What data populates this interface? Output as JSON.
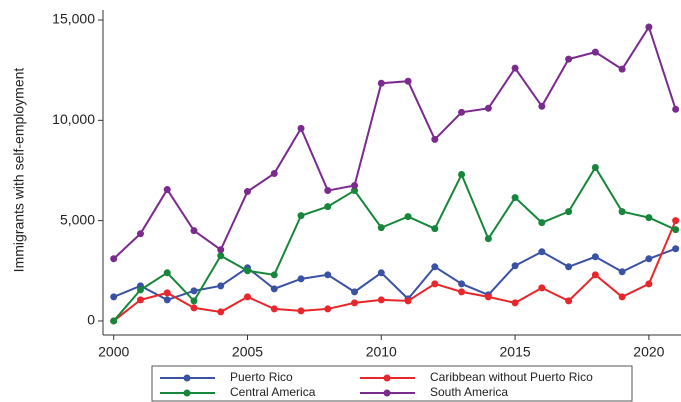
{
  "chart_data": {
    "type": "line",
    "y_label": "Immigrants with self-employment",
    "x": [
      2000,
      2001,
      2002,
      2003,
      2004,
      2005,
      2006,
      2007,
      2008,
      2009,
      2010,
      2011,
      2012,
      2013,
      2014,
      2015,
      2016,
      2017,
      2018,
      2019,
      2020,
      2021
    ],
    "series": [
      {
        "name": "Puerto Rico",
        "color": "#3a52a4",
        "values": [
          1200,
          1750,
          1050,
          1500,
          1750,
          2650,
          1600,
          2100,
          2300,
          1450,
          2400,
          1100,
          2700,
          1850,
          1300,
          2750,
          3450,
          2700,
          3200,
          2450,
          3100,
          3600
        ]
      },
      {
        "name": "Caribbean without Puerto Rico",
        "color": "#e8262b",
        "values": [
          0,
          1050,
          1400,
          650,
          450,
          1200,
          600,
          500,
          600,
          900,
          1050,
          1000,
          1850,
          1450,
          1200,
          900,
          1650,
          1000,
          2300,
          1200,
          1850,
          5000
        ]
      },
      {
        "name": "Central America",
        "color": "#16873a",
        "values": [
          0,
          1550,
          2400,
          1000,
          3250,
          2500,
          2300,
          5250,
          5700,
          6500,
          4650,
          5200,
          4600,
          7300,
          4100,
          6150,
          4900,
          5450,
          7650,
          5450,
          5150,
          4550
        ]
      },
      {
        "name": "South America",
        "color": "#7b2a8e",
        "values": [
          3100,
          4350,
          6550,
          4500,
          3550,
          6450,
          7350,
          9600,
          6500,
          6750,
          11850,
          11950,
          9050,
          10400,
          10600,
          12600,
          10700,
          13050,
          13400,
          12550,
          14650,
          10550
        ]
      }
    ],
    "xlim": [
      1999.6,
      2021.2
    ],
    "xticks": [
      2000,
      2005,
      2010,
      2015,
      2020
    ],
    "ylim": [
      -700,
      15500
    ],
    "yticks": [
      0,
      {
        "value": 5000,
        "label": "5,000"
      },
      {
        "value": 10000,
        "label": "10,000"
      },
      {
        "value": 15000,
        "label": "15,000"
      }
    ],
    "legend": "bottom"
  }
}
